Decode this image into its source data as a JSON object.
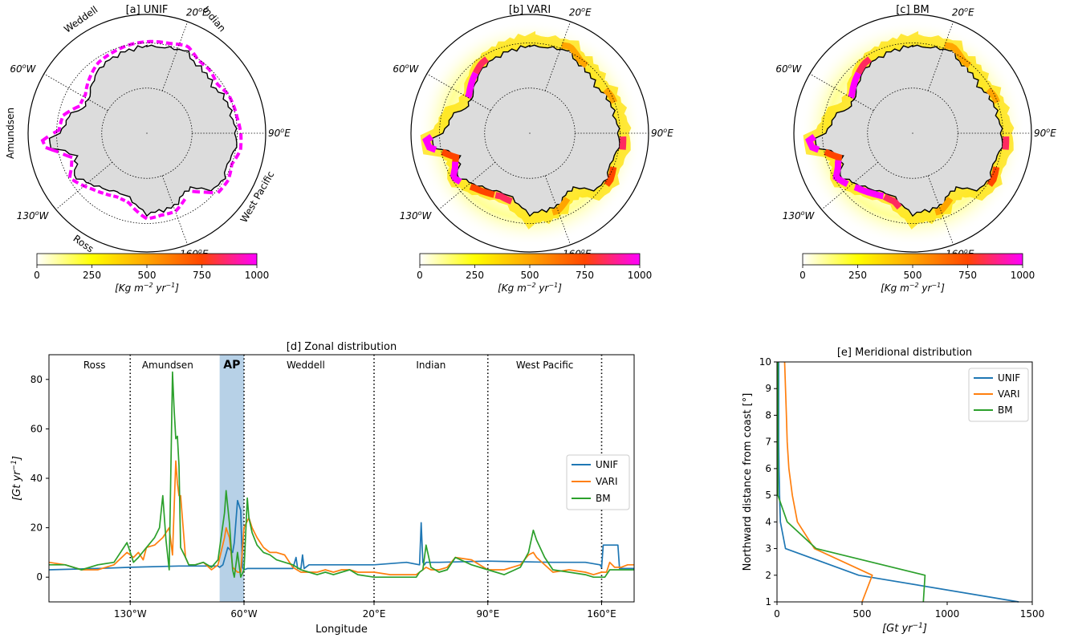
{
  "maps": [
    {
      "title": "[a] UNIF",
      "style": "unif",
      "lon_labels": {
        "e20": "20",
        "e90": "90",
        "e160": "160",
        "w60": "60",
        "w130": "130"
      },
      "regions": [
        "Weddell",
        "Indian",
        "West Pacific",
        "Ross",
        "Amundsen"
      ]
    },
    {
      "title": "[b] VARI",
      "style": "vari",
      "lon_labels": {
        "e20": "20",
        "e90": "90",
        "e160": "160",
        "w60": "60",
        "w130": "130"
      },
      "regions": []
    },
    {
      "title": "[c] BM",
      "style": "bm",
      "lon_labels": {
        "e20": "20",
        "e90": "90",
        "e160": "160",
        "w60": "60",
        "w130": "130"
      },
      "regions": []
    }
  ],
  "colorbar": {
    "ticks": [
      "0",
      "250",
      "500",
      "750",
      "1000"
    ],
    "vmin": 0,
    "vmax": 1000,
    "colors": [
      "#ffffff",
      "#ffff00",
      "#ffa500",
      "#ff4500",
      "#ff00ff"
    ]
  },
  "chart_data": [
    {
      "type": "line",
      "title": "[d] Zonal distribution",
      "xlabel": "Longitude",
      "xlim": [
        -180,
        180
      ],
      "ylim": [
        -10,
        90
      ],
      "yticks": [
        0,
        20,
        40,
        60,
        80
      ],
      "xticks": [
        {
          "v": -130,
          "label": "130°W"
        },
        {
          "v": -60,
          "label": "60°W"
        },
        {
          "v": 20,
          "label": "20°E"
        },
        {
          "v": 90,
          "label": "90°E"
        },
        {
          "v": 160,
          "label": "160°E"
        }
      ],
      "sectors": [
        {
          "name": "Ross",
          "x": -152
        },
        {
          "name": "Amundsen",
          "x": -107
        },
        {
          "name": "AP",
          "x": -67.5
        },
        {
          "name": "Weddell",
          "x": -22
        },
        {
          "name": "Indian",
          "x": 55
        },
        {
          "name": "West Pacific",
          "x": 125
        }
      ],
      "boundaries": [
        -130,
        -60,
        20,
        90,
        160
      ],
      "shaded": [
        -75,
        -60
      ],
      "legend_loc": "center right",
      "series": [
        {
          "name": "UNIF",
          "color": "#1f77b4",
          "x": [
            -180,
            -150,
            -130,
            -100,
            -76,
            -75,
            -73,
            -70,
            -67,
            -66,
            -64,
            -62,
            -61,
            -60,
            -58,
            -57,
            -50,
            -40,
            -30,
            -28,
            -27,
            -25,
            -24,
            -23,
            -22,
            -20,
            0,
            20,
            40,
            48,
            49,
            50,
            51,
            52,
            60,
            90,
            130,
            150,
            159,
            160,
            161,
            162,
            170,
            171,
            180
          ],
          "y": [
            3,
            3.5,
            4,
            4.5,
            4.5,
            4,
            5,
            12,
            10,
            14,
            31,
            27,
            4,
            3,
            3.5,
            3.5,
            3.5,
            3.5,
            3.5,
            8,
            3.5,
            3.5,
            9,
            3.5,
            4,
            5,
            5,
            5,
            6,
            5,
            22,
            6,
            5,
            6,
            6,
            6.5,
            6,
            6,
            5,
            4,
            13,
            13,
            13,
            3.5,
            3.5
          ]
        },
        {
          "name": "VARI",
          "color": "#ff7f0e",
          "x": [
            -180,
            -170,
            -160,
            -150,
            -140,
            -132,
            -130,
            -128,
            -125,
            -122,
            -120,
            -115,
            -110,
            -106,
            -104,
            -102,
            -101,
            -100,
            -99,
            -96,
            -94,
            -90,
            -85,
            -80,
            -76,
            -72,
            -71,
            -69,
            -67,
            -64,
            -62,
            -60,
            -57,
            -55,
            -52,
            -48,
            -44,
            -40,
            -35,
            -30,
            -25,
            -20,
            -15,
            -10,
            -5,
            0,
            5,
            10,
            20,
            30,
            40,
            46,
            48,
            50,
            52,
            55,
            60,
            65,
            70,
            80,
            90,
            100,
            110,
            115,
            118,
            120,
            125,
            130,
            140,
            150,
            155,
            160,
            163,
            165,
            168,
            172,
            176,
            180
          ],
          "y": [
            6,
            5,
            3,
            3,
            5,
            10,
            9,
            8,
            10,
            7,
            12,
            13,
            16,
            20,
            9,
            47,
            38,
            33,
            33,
            8,
            5,
            5,
            6,
            3,
            5,
            16,
            20,
            16,
            4,
            2,
            2,
            20,
            24,
            20,
            16,
            12,
            10,
            10,
            9,
            4,
            2,
            2,
            2,
            3,
            2,
            3,
            3,
            2,
            2,
            1,
            1,
            1,
            2,
            3,
            4,
            3,
            3,
            4,
            8,
            7,
            3,
            3,
            5,
            9,
            10,
            8,
            5,
            2,
            3,
            2,
            1,
            2,
            2,
            6,
            4,
            4,
            5,
            5
          ]
        },
        {
          "name": "BM",
          "color": "#2ca02c",
          "x": [
            -180,
            -170,
            -160,
            -150,
            -140,
            -132,
            -130,
            -128,
            -125,
            -120,
            -115,
            -112,
            -110,
            -108,
            -106,
            -104,
            -103,
            -102,
            -101,
            -100,
            -99,
            -96,
            -94,
            -90,
            -85,
            -80,
            -76,
            -72,
            -71,
            -69,
            -67,
            -66,
            -64,
            -62,
            -60,
            -58,
            -57,
            -55,
            -52,
            -48,
            -44,
            -40,
            -35,
            -30,
            -25,
            -20,
            -15,
            -10,
            -5,
            0,
            5,
            10,
            20,
            30,
            40,
            46,
            48,
            50,
            52,
            55,
            60,
            65,
            70,
            80,
            90,
            95,
            100,
            110,
            115,
            118,
            120,
            125,
            130,
            140,
            150,
            155,
            160,
            162,
            165,
            168,
            172,
            176,
            180
          ],
          "y": [
            5,
            5,
            3,
            5,
            6,
            14,
            10,
            6,
            8,
            12,
            16,
            20,
            33,
            15,
            3,
            83,
            68,
            56,
            57,
            45,
            12,
            8,
            5,
            5,
            6,
            4,
            7,
            26,
            35,
            22,
            3,
            0,
            10,
            0,
            3,
            32,
            24,
            18,
            13,
            10,
            9,
            7,
            6,
            5,
            3,
            2,
            1,
            2,
            1,
            2,
            3,
            1,
            0,
            0,
            0,
            0,
            2,
            3,
            13,
            4,
            2,
            3,
            8,
            5,
            3,
            2,
            1,
            4,
            10,
            19,
            15,
            8,
            3,
            2,
            1,
            0,
            0,
            0,
            3,
            3,
            3,
            3,
            3
          ]
        }
      ]
    },
    {
      "type": "line",
      "title": "[e] Meridional distribution",
      "ylabel": "Northward distance from coast [°]",
      "xlim": [
        0,
        1500
      ],
      "ylim": [
        1,
        10
      ],
      "xticks": [
        0,
        500,
        1000,
        1500
      ],
      "yticks": [
        1,
        2,
        3,
        4,
        5,
        6,
        7,
        8,
        9,
        10
      ],
      "legend_loc": "upper right",
      "series": [
        {
          "name": "UNIF",
          "color": "#1f77b4",
          "x": [
            1420,
            480,
            50,
            20,
            15,
            12,
            10,
            10,
            10,
            10
          ],
          "y": [
            1,
            2,
            3,
            4,
            5,
            6,
            7,
            8,
            9,
            10
          ]
        },
        {
          "name": "VARI",
          "color": "#ff7f0e",
          "x": [
            500,
            560,
            220,
            120,
            90,
            70,
            60,
            55,
            50,
            45
          ],
          "y": [
            1,
            2,
            3,
            4,
            5,
            6,
            7,
            8,
            9,
            10
          ]
        },
        {
          "name": "BM",
          "color": "#2ca02c",
          "x": [
            860,
            870,
            230,
            60,
            5,
            5,
            5,
            5,
            5,
            5
          ],
          "y": [
            1,
            2,
            3,
            4,
            5,
            6,
            7,
            8,
            9,
            10
          ]
        }
      ]
    }
  ]
}
